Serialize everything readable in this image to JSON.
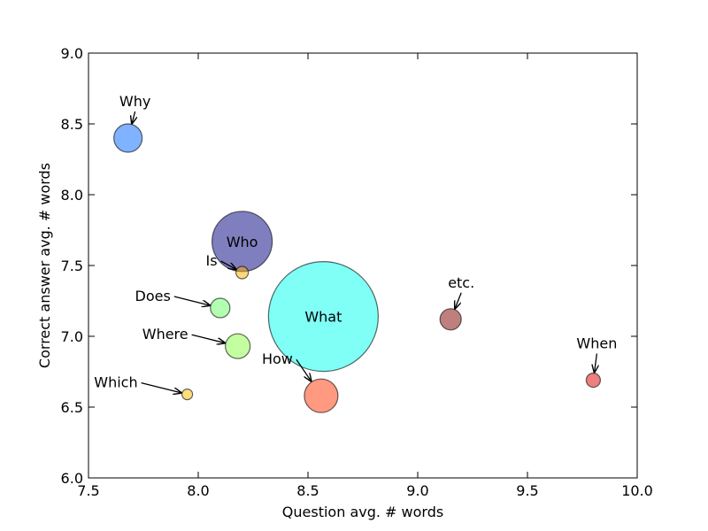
{
  "chart_data": {
    "type": "scatter",
    "xlabel": "Question avg. # words",
    "ylabel": "Correct answer avg. # words",
    "xlim": [
      7.5,
      10.0
    ],
    "ylim": [
      6.0,
      9.0
    ],
    "xticks": [
      "7.5",
      "8.0",
      "8.5",
      "9.0",
      "9.5",
      "10.0"
    ],
    "yticks": [
      "6.0",
      "6.5",
      "7.0",
      "7.5",
      "8.0",
      "8.5",
      "9.0"
    ],
    "grid": false,
    "points": [
      {
        "label": "Why",
        "x": 7.68,
        "y": 8.4,
        "size": 16,
        "color": "#0066ff",
        "annotation": "arrow"
      },
      {
        "label": "Who",
        "x": 8.2,
        "y": 7.67,
        "size": 34,
        "color": "#000080",
        "annotation": "inside"
      },
      {
        "label": "Is",
        "x": 8.2,
        "y": 7.45,
        "size": 7,
        "color": "#ffb000",
        "annotation": "arrow"
      },
      {
        "label": "Does",
        "x": 8.1,
        "y": 7.2,
        "size": 11,
        "color": "#66ff66",
        "annotation": "arrow"
      },
      {
        "label": "What",
        "x": 8.57,
        "y": 7.14,
        "size": 62,
        "color": "#00ffee",
        "annotation": "inside"
      },
      {
        "label": "etc.",
        "x": 9.15,
        "y": 7.12,
        "size": 12,
        "color": "#800000",
        "annotation": "arrow"
      },
      {
        "label": "Where",
        "x": 8.18,
        "y": 6.93,
        "size": 14,
        "color": "#88ff44",
        "annotation": "arrow"
      },
      {
        "label": "When",
        "x": 9.8,
        "y": 6.69,
        "size": 8,
        "color": "#dd0000",
        "annotation": "arrow"
      },
      {
        "label": "How",
        "x": 8.56,
        "y": 6.58,
        "size": 19,
        "color": "#ff3300",
        "annotation": "arrow"
      },
      {
        "label": "Which",
        "x": 7.95,
        "y": 6.59,
        "size": 6,
        "color": "#ffbb00",
        "annotation": "arrow"
      }
    ]
  }
}
